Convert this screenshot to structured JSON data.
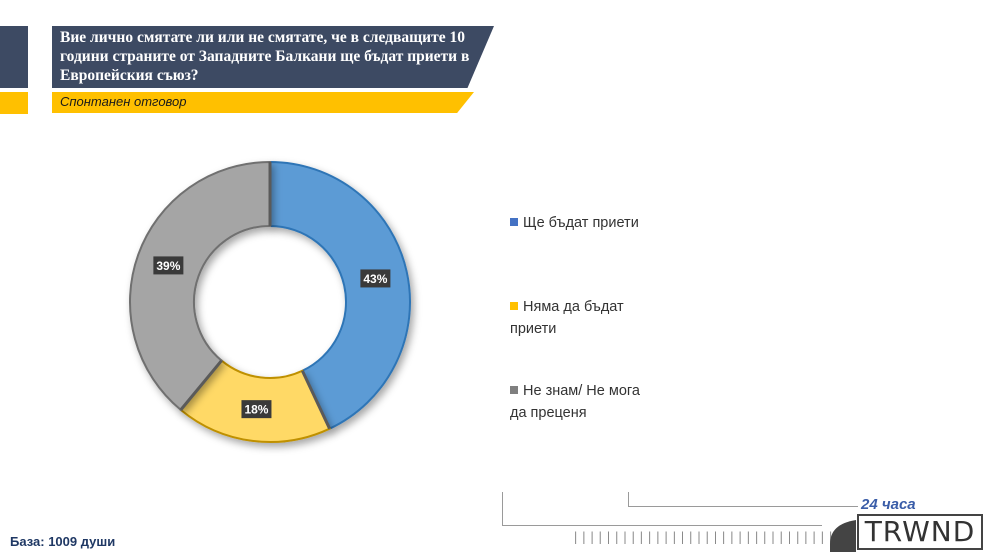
{
  "header": {
    "title": "Вие лично смятате ли или не смятате, че в следващите 10 години страните от Западните Балкани ще бъдат приети в Европейския съюз?",
    "subtitle": "Спонтанен отговор"
  },
  "chart_data": {
    "type": "pie",
    "donut": true,
    "title": "Вие лично смятате ли или не смятате, че в следващите 10 години страните от Западните Балкани ще бъдат приети в Европейския съюз?",
    "subtitle": "Спонтанен отговор",
    "categories": [
      "Ще бъдат приети",
      "Няма да бъдат приети",
      "Не знам/ Не мога да преценя"
    ],
    "values": [
      43,
      18,
      39
    ],
    "labels": [
      "43%",
      "18%",
      "39%"
    ],
    "colors": [
      "#5b9bd5",
      "#ffd966",
      "#a5a5a5"
    ],
    "legend_position": "right"
  },
  "legend": {
    "items": [
      {
        "label": "Ще бъдат приети",
        "color": "#4472c4"
      },
      {
        "label": "Няма да бъдат приети",
        "color": "#ffc000"
      },
      {
        "label": "Не знам/ Не мога да преценя",
        "color": "#7f7f7f"
      }
    ]
  },
  "footer": {
    "base": "База: 1009 души",
    "tick_marks": "||||||||||||||||||||||||||||||||",
    "logo_top": "24 часа",
    "logo_main": "TRWND"
  }
}
